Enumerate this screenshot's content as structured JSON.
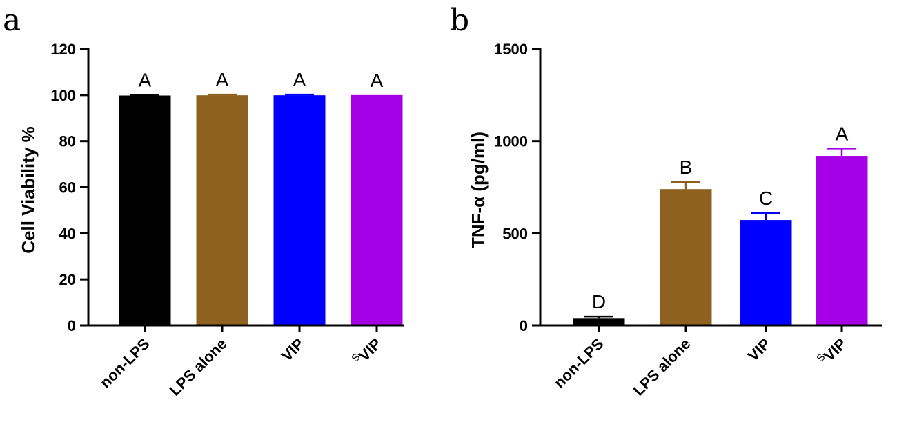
{
  "chart_data": [
    {
      "panel": "a",
      "type": "bar",
      "categories": [
        "non-LPS",
        "LPS alone",
        "VIP",
        "VIP"
      ],
      "category_superscripts": [
        "",
        "",
        "",
        "S"
      ],
      "values": [
        99.8,
        99.9,
        99.9,
        100
      ],
      "errors": [
        0.3,
        0.3,
        0.3,
        0
      ],
      "significance": [
        "A",
        "A",
        "A",
        "A"
      ],
      "colors": [
        "#000000",
        "#8e6120",
        "#0000ff",
        "#a500e6"
      ],
      "xlabel": "",
      "ylabel": "Cell Viability %",
      "ylim": [
        0,
        120
      ],
      "yticks": [
        0,
        20,
        40,
        60,
        80,
        100,
        120
      ],
      "grid": false,
      "legend": "none"
    },
    {
      "panel": "b",
      "type": "bar",
      "categories": [
        "non-LPS",
        "LPS alone",
        "VIP",
        "VIP"
      ],
      "category_superscripts": [
        "",
        "",
        "",
        "S"
      ],
      "values": [
        40,
        740,
        572,
        920
      ],
      "errors": [
        8,
        38,
        38,
        40
      ],
      "significance": [
        "D",
        "B",
        "C",
        "A"
      ],
      "colors": [
        "#000000",
        "#8e6120",
        "#0000ff",
        "#a500e6"
      ],
      "xlabel": "",
      "ylabel": "TNF-α (pg/ml)",
      "ylim": [
        0,
        1500
      ],
      "yticks": [
        0,
        500,
        1000,
        1500
      ],
      "grid": false,
      "legend": "none"
    }
  ]
}
